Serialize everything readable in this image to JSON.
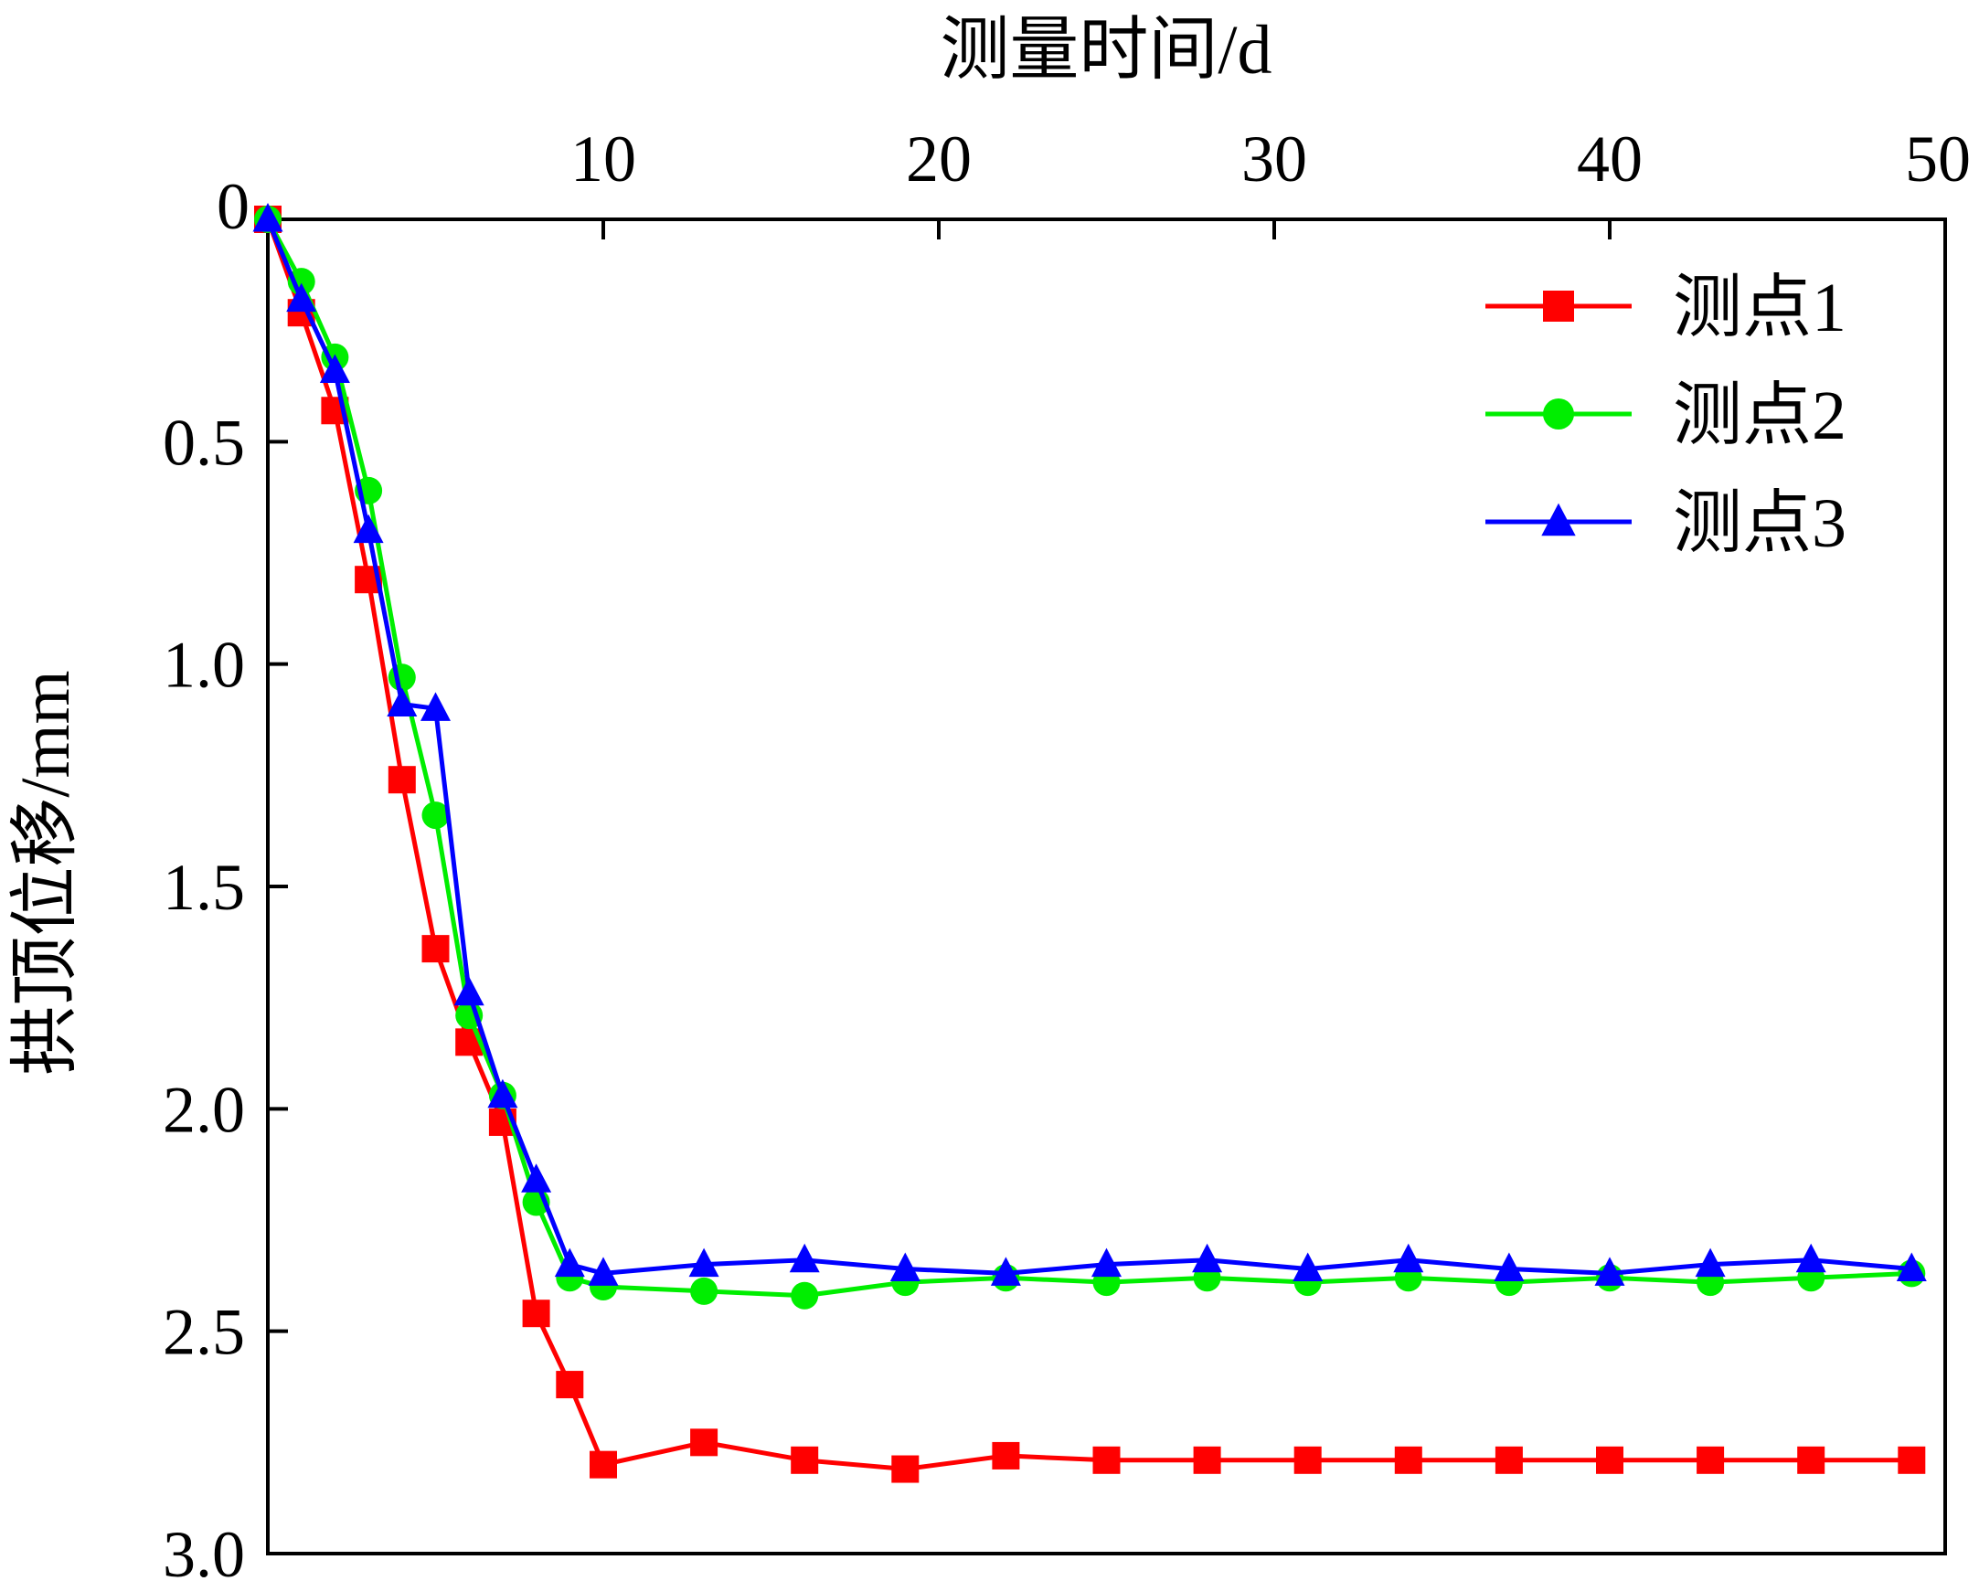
{
  "chart_data": {
    "type": "line",
    "title": "",
    "xlabel": "测量时间/d",
    "ylabel": "拱顶位移/mm",
    "xlim": [
      0,
      50
    ],
    "ylim": [
      0,
      3.0
    ],
    "y_inverted": true,
    "x_axis_position": "top",
    "xticks": [
      10,
      20,
      30,
      40,
      50
    ],
    "xtick_labels": [
      "10",
      "20",
      "30",
      "40",
      "50"
    ],
    "yticks": [
      0,
      0.5,
      1.0,
      1.5,
      2.0,
      2.5,
      3.0
    ],
    "ytick_labels": [
      "0",
      "0.5",
      "1.0",
      "1.5",
      "2.0",
      "2.5",
      "3.0"
    ],
    "grid": false,
    "legend_position": "top-right",
    "series": [
      {
        "name": "测点1",
        "color": "#ff0000",
        "marker": "square",
        "x": [
          0,
          1,
          2,
          3,
          4,
          5,
          6,
          7,
          8,
          9,
          10,
          13,
          16,
          19,
          22,
          25,
          28,
          31,
          34,
          37,
          40,
          43,
          46,
          49
        ],
        "y": [
          0,
          0.21,
          0.43,
          0.81,
          1.26,
          1.64,
          1.85,
          2.03,
          2.46,
          2.62,
          2.8,
          2.75,
          2.79,
          2.81,
          2.78,
          2.79,
          2.79,
          2.79,
          2.79,
          2.79,
          2.79,
          2.79,
          2.79,
          2.79
        ]
      },
      {
        "name": "测点2",
        "color": "#00ee00",
        "marker": "circle",
        "x": [
          0,
          1,
          2,
          3,
          4,
          5,
          6,
          7,
          8,
          9,
          10,
          13,
          16,
          19,
          22,
          25,
          28,
          31,
          34,
          37,
          40,
          43,
          46,
          49
        ],
        "y": [
          0,
          0.14,
          0.31,
          0.61,
          1.03,
          1.34,
          1.79,
          1.97,
          2.21,
          2.38,
          2.4,
          2.41,
          2.42,
          2.39,
          2.38,
          2.39,
          2.38,
          2.39,
          2.38,
          2.39,
          2.38,
          2.39,
          2.38,
          2.37
        ]
      },
      {
        "name": "测点3",
        "color": "#0000ff",
        "marker": "triangle",
        "x": [
          0,
          1,
          2,
          3,
          4,
          5,
          6,
          7,
          8,
          9,
          10,
          13,
          16,
          19,
          22,
          25,
          28,
          31,
          34,
          37,
          40,
          43,
          46,
          49
        ],
        "y": [
          0,
          0.18,
          0.34,
          0.7,
          1.09,
          1.1,
          1.74,
          1.97,
          2.16,
          2.35,
          2.37,
          2.35,
          2.34,
          2.36,
          2.37,
          2.35,
          2.34,
          2.36,
          2.34,
          2.36,
          2.37,
          2.35,
          2.34,
          2.36
        ]
      }
    ]
  }
}
